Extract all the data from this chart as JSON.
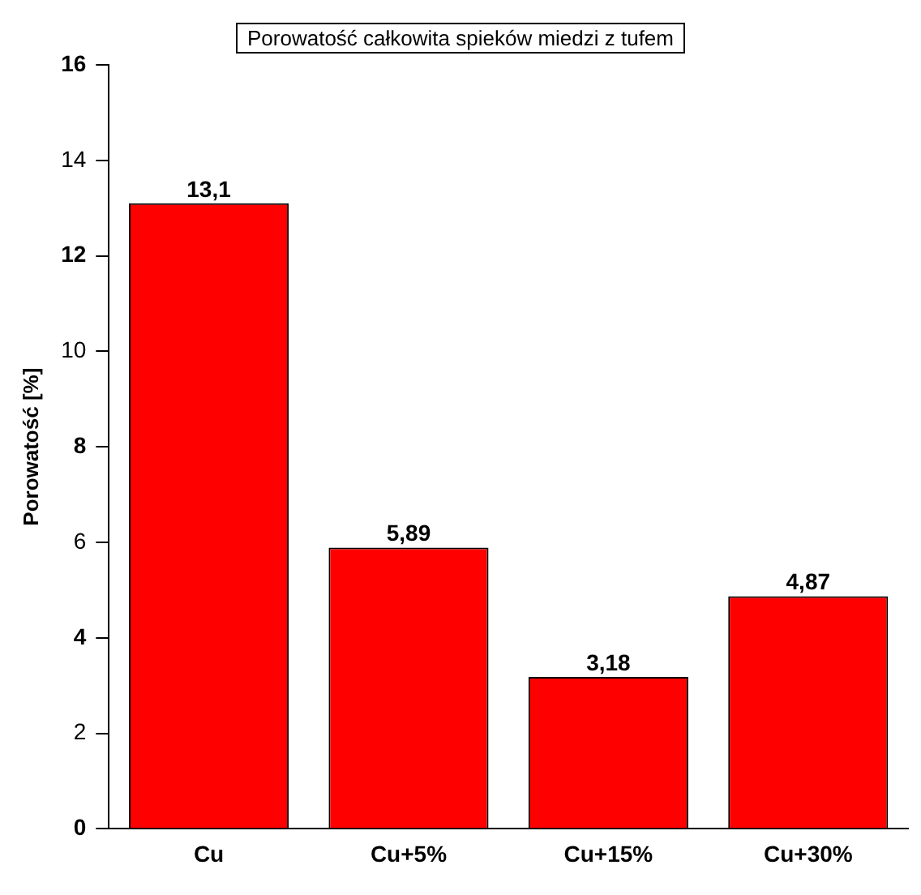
{
  "chart_data": {
    "type": "bar",
    "title": "Porowatość całkowita spieków miedzi z tufem",
    "ylabel": "Porowatość [%]",
    "categories": [
      "Cu",
      "Cu+5%",
      "Cu+15%",
      "Cu+30%"
    ],
    "values": [
      13.1,
      5.89,
      3.18,
      4.87
    ],
    "value_labels": [
      "13,1",
      "5,89",
      "3,18",
      "4,87"
    ],
    "color": "#ff0000",
    "ylim": [
      0,
      16
    ],
    "yticks": [
      0,
      2,
      4,
      6,
      8,
      10,
      12,
      14,
      16
    ],
    "grid": false,
    "legend": false
  }
}
